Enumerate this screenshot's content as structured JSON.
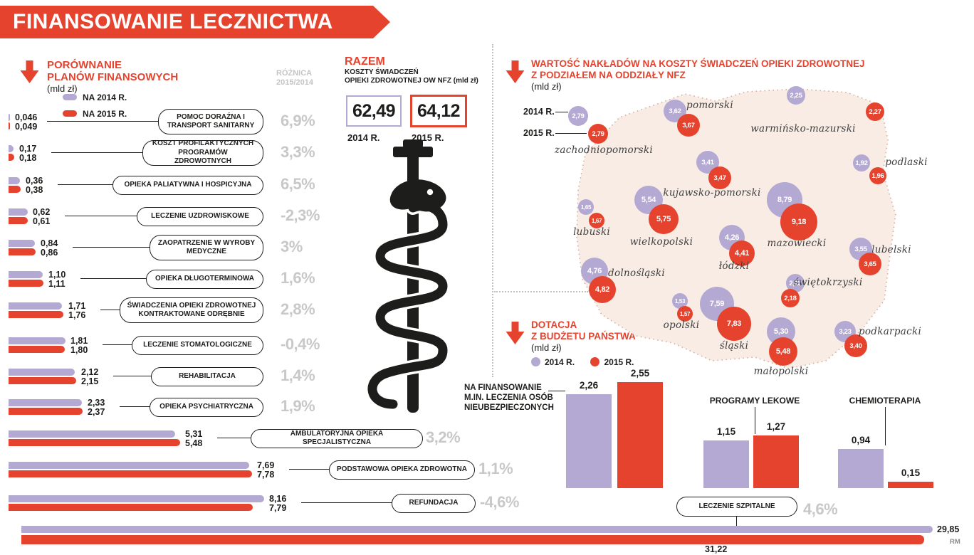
{
  "colors": {
    "red": "#e5432e",
    "purple": "#b3a9d3",
    "gray": "#c8c8c8"
  },
  "header": {
    "title": "FINANSOWANIE LECZNICTWA",
    "credit": "RM"
  },
  "comparison": {
    "title_line1": "PORÓWNANIE",
    "title_line2": "PLANÓW FINANSOWYCH",
    "unit": "(mld zł)",
    "diff_header_line1": "RÓŻNICA",
    "diff_header_line2": "2015/2014",
    "legend_2014": "NA 2014 R.",
    "legend_2015": "NA 2015 R.",
    "rows": [
      {
        "label": "POMOC DORAŹNA I TRANSPORT SANITARNY",
        "v2014": "0,046",
        "v2015": "0,049",
        "diff": "6,9%"
      },
      {
        "label": "KOSZT PROFILAKTYCZNYCH PROGRAMÓW ZDROWOTNYCH",
        "v2014": "0,17",
        "v2015": "0,18",
        "diff": "3,3%"
      },
      {
        "label": "OPIEKA PALIATYWNA I HOSPICYJNA",
        "v2014": "0,36",
        "v2015": "0,38",
        "diff": "6,5%"
      },
      {
        "label": "LECZENIE UZDROWISKOWE",
        "v2014": "0,62",
        "v2015": "0,61",
        "diff": "-2,3%"
      },
      {
        "label": "ZAOPATRZENIE W WYROBY MEDYCZNE",
        "v2014": "0,84",
        "v2015": "0,86",
        "diff": "3%"
      },
      {
        "label": "OPIEKA DŁUGOTERMINOWA",
        "v2014": "1,10",
        "v2015": "1,11",
        "diff": "1,6%"
      },
      {
        "label": "ŚWIADCZENIA OPIEKI ZDROWOTNEJ KONTRAKTOWANE ODRĘBNIE",
        "v2014": "1,71",
        "v2015": "1,76",
        "diff": "2,8%"
      },
      {
        "label": "LECZENIE STOMATOLOGICZNE",
        "v2014": "1,81",
        "v2015": "1,80",
        "diff": "-0,4%"
      },
      {
        "label": "REHABILITACJA",
        "v2014": "2,12",
        "v2015": "2,15",
        "diff": "1,4%"
      },
      {
        "label": "OPIEKA PSYCHIATRYCZNA",
        "v2014": "2,33",
        "v2015": "2,37",
        "diff": "1,9%"
      },
      {
        "label": "AMBULATORYJNA OPIEKA SPECJALISTYCZNA",
        "v2014": "5,31",
        "v2015": "5,48",
        "diff": "3,2%"
      },
      {
        "label": "PODSTAWOWA OPIEKA ZDROWOTNA",
        "v2014": "7,69",
        "v2015": "7,78",
        "diff": "1,1%"
      },
      {
        "label": "REFUNDACJA",
        "v2014": "8,16",
        "v2015": "7,79",
        "diff": "-4,6%"
      },
      {
        "label": "LECZENIE SZPITALNE",
        "v2014": "29,85",
        "v2015": "31,22",
        "diff": "4,6%"
      }
    ]
  },
  "total": {
    "title": "RAZEM",
    "subtitle_line1": "KOSZTY ŚWIADCZEŃ",
    "subtitle_line2": "OPIEKI ZDROWOTNEJ OW NFZ (mld zł)",
    "v2014": "62,49",
    "v2015": "64,12",
    "label_2014": "2014 R.",
    "label_2015": "2015 R."
  },
  "map": {
    "title_line1": "WARTOŚĆ NAKŁADÓW NA KOSZTY ŚWIADCZEŃ OPIEKI ZDROWOTNEJ",
    "title_line2": "Z PODZIAŁEM NA ODDZIAŁY NFZ",
    "unit": "(mld zł)",
    "legend_2014": "2014 R.",
    "legend_2015": "2015 R.",
    "regions": [
      {
        "name": "zachodniopomorski",
        "v2014": "2,79",
        "v2015": "2,79"
      },
      {
        "name": "pomorski",
        "v2014": "3,62",
        "v2015": "3,67"
      },
      {
        "name": "warmińsko-mazurski",
        "v2014": "2,25",
        "v2015": "2,27"
      },
      {
        "name": "podlaski",
        "v2014": "1,92",
        "v2015": "1,96"
      },
      {
        "name": "kujawsko-pomorski",
        "v2014": "3,41",
        "v2015": "3,47"
      },
      {
        "name": "lubuski",
        "v2014": "1,65",
        "v2015": "1,67"
      },
      {
        "name": "wielkopolski",
        "v2014": "5,54",
        "v2015": "5,75"
      },
      {
        "name": "mazowiecki",
        "v2014": "8,79",
        "v2015": "9,18"
      },
      {
        "name": "łódzki",
        "v2014": "4,26",
        "v2015": "4,41"
      },
      {
        "name": "lubelski",
        "v2014": "3,55",
        "v2015": "3,65"
      },
      {
        "name": "dolnośląski",
        "v2014": "4,76",
        "v2015": "4,82"
      },
      {
        "name": "świętokrzyski",
        "v2014": "2,13",
        "v2015": "2,18"
      },
      {
        "name": "opolski",
        "v2014": "1,53",
        "v2015": "1,57"
      },
      {
        "name": "śląski",
        "v2014": "7,59",
        "v2015": "7,83"
      },
      {
        "name": "małopolski",
        "v2014": "5,30",
        "v2015": "5,48"
      },
      {
        "name": "podkarpacki",
        "v2014": "3,23",
        "v2015": "3,40"
      }
    ]
  },
  "subsidy": {
    "title_line1": "DOTACJA",
    "title_line2": "Z BUDŻETU PAŃSTWA",
    "unit": "(mld zł)",
    "legend_2014": "2014 R.",
    "legend_2015": "2015 R.",
    "groups": [
      {
        "label": "NA FINANSOWANIE M.IN. LECZENIA OSÓB NIEUBEZPIECZONYCH",
        "v2014": "2,26",
        "v2015": "2,55"
      },
      {
        "label": "PROGRAMY LEKOWE",
        "v2014": "1,15",
        "v2015": "1,27"
      },
      {
        "label": "CHEMIOTERAPIA",
        "v2014": "0,94",
        "v2015": "0,15"
      }
    ]
  },
  "chart_data": [
    {
      "type": "bar",
      "orientation": "horizontal",
      "title": "PORÓWNANIE PLANÓW FINANSOWYCH (mld zł)",
      "categories": [
        "POMOC DORAŹNA I TRANSPORT SANITARNY",
        "KOSZT PROFILAKTYCZNYCH PROGRAMÓW ZDROWOTNYCH",
        "OPIEKA PALIATYWNA I HOSPICYJNA",
        "LECZENIE UZDROWISKOWE",
        "ZAOPATRZENIE W WYROBY MEDYCZNE",
        "OPIEKA DŁUGOTERMINOWA",
        "ŚWIADCZENIA OPIEKI ZDROWOTNEJ KONTRAKTOWANE ODRĘBNIE",
        "LECZENIE STOMATOLOGICZNE",
        "REHABILITACJA",
        "OPIEKA PSYCHIATRYCZNA",
        "AMBULATORYJNA OPIEKA SPECJALISTYCZNA",
        "PODSTAWOWA OPIEKA ZDROWOTNA",
        "REFUNDACJA",
        "LECZENIE SZPITALNE"
      ],
      "series": [
        {
          "name": "NA 2014 R.",
          "values": [
            0.046,
            0.17,
            0.36,
            0.62,
            0.84,
            1.1,
            1.71,
            1.81,
            2.12,
            2.33,
            5.31,
            7.69,
            8.16,
            29.85
          ]
        },
        {
          "name": "NA 2015 R.",
          "values": [
            0.049,
            0.18,
            0.38,
            0.61,
            0.86,
            1.11,
            1.76,
            1.8,
            2.15,
            2.37,
            5.48,
            7.78,
            7.79,
            31.22
          ]
        }
      ],
      "annotations": [
        "6,9%",
        "3,3%",
        "6,5%",
        "-2,3%",
        "3%",
        "1,6%",
        "2,8%",
        "-0,4%",
        "1,4%",
        "1,9%",
        "3,2%",
        "1,1%",
        "-4,6%",
        "4,6%"
      ],
      "legend_position": "top-left"
    },
    {
      "type": "bar",
      "title": "RAZEM KOSZTY ŚWIADCZEŃ OPIEKI ZDROWOTNEJ OW NFZ (mld zł)",
      "categories": [
        "2014 R.",
        "2015 R."
      ],
      "values": [
        62.49,
        64.12
      ]
    },
    {
      "type": "scatter",
      "title": "WARTOŚĆ NAKŁADÓW NA KOSZTY ŚWIADCZEŃ OPIEKI ZDROWOTNEJ Z PODZIAŁEM NA ODDZIAŁY NFZ (mld zł)",
      "categories": [
        "zachodniopomorski",
        "pomorski",
        "warmińsko-mazurski",
        "podlaski",
        "kujawsko-pomorski",
        "lubuski",
        "wielkopolski",
        "mazowiecki",
        "łódzki",
        "lubelski",
        "dolnośląski",
        "świętokrzyski",
        "opolski",
        "śląski",
        "małopolski",
        "podkarpacki"
      ],
      "series": [
        {
          "name": "2014 R.",
          "values": [
            2.79,
            3.62,
            2.25,
            1.92,
            3.41,
            1.65,
            5.54,
            8.79,
            4.26,
            3.55,
            4.76,
            2.13,
            1.53,
            7.59,
            5.3,
            3.23
          ]
        },
        {
          "name": "2015 R.",
          "values": [
            2.79,
            3.67,
            2.27,
            1.96,
            3.47,
            1.67,
            5.75,
            9.18,
            4.41,
            3.65,
            4.82,
            2.18,
            1.57,
            7.83,
            5.48,
            3.4
          ]
        }
      ]
    },
    {
      "type": "bar",
      "title": "DOTACJA Z BUDŻETU PAŃSTWA (mld zł)",
      "categories": [
        "NA FINANSOWANIE M.IN. LECZENIA OSÓB NIEUBEZPIECZONYCH",
        "PROGRAMY LEKOWE",
        "CHEMIOTERAPIA"
      ],
      "series": [
        {
          "name": "2014 R.",
          "values": [
            2.26,
            1.15,
            0.94
          ]
        },
        {
          "name": "2015 R.",
          "values": [
            2.55,
            1.27,
            0.15
          ]
        }
      ]
    }
  ]
}
